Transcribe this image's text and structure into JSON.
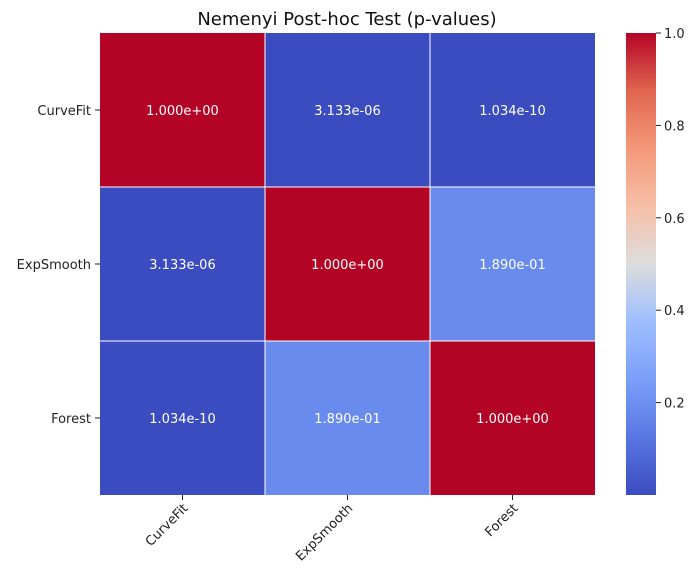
{
  "chart_data": {
    "type": "heatmap",
    "title": "Nemenyi Post-hoc Test (p-values)",
    "x_categories": [
      "CurveFit",
      "ExpSmooth",
      "Forest"
    ],
    "y_categories": [
      "CurveFit",
      "ExpSmooth",
      "Forest"
    ],
    "values": [
      [
        1.0,
        3.133e-06,
        1.034e-10
      ],
      [
        3.133e-06,
        1.0,
        0.189
      ],
      [
        1.034e-10,
        0.189,
        1.0
      ]
    ],
    "cell_labels": [
      [
        "1.000e+00",
        "3.133e-06",
        "1.034e-10"
      ],
      [
        "3.133e-06",
        "1.000e+00",
        "1.890e-01"
      ],
      [
        "1.034e-10",
        "1.890e-01",
        "1.000e+00"
      ]
    ],
    "colormap": "coolwarm",
    "colorbar": {
      "ticks": [
        0.2,
        0.4,
        0.6,
        0.8,
        1.0
      ],
      "tick_labels": [
        "0.2",
        "0.4",
        "0.6",
        "0.8",
        "1.0"
      ],
      "range": [
        0.0,
        1.0
      ]
    },
    "xlabel": "",
    "ylabel": "",
    "x_tick_rotation_deg": 45,
    "grid": false
  }
}
